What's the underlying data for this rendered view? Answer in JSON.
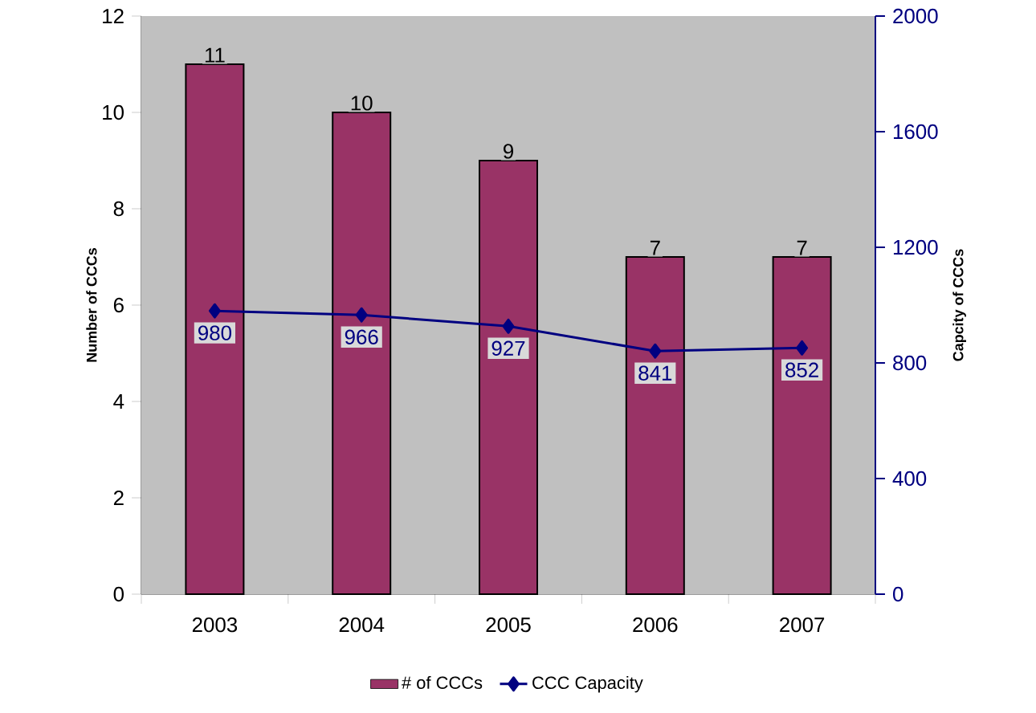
{
  "chart_data": {
    "type": "bar",
    "categories": [
      "2003",
      "2004",
      "2005",
      "2006",
      "2007"
    ],
    "series": [
      {
        "name": "# of CCCs",
        "color": "#993366",
        "values": [
          11,
          10,
          9,
          7,
          7
        ]
      },
      {
        "name": "CCC Capacity",
        "type": "line",
        "axis": "y2",
        "color": "#000080",
        "values": [
          980,
          966,
          927,
          841,
          852
        ]
      }
    ],
    "ylabel": "Number of CCCs",
    "y2label": "Capcity of CCCs",
    "ylim": [
      0,
      12
    ],
    "yticks": [
      0,
      2,
      4,
      6,
      8,
      10,
      12
    ],
    "y2lim": [
      0,
      2000
    ],
    "y2ticks": [
      0,
      400,
      800,
      1200,
      1600,
      2000
    ],
    "marker": "diamond",
    "data_labels": true,
    "legend": "bottom"
  }
}
